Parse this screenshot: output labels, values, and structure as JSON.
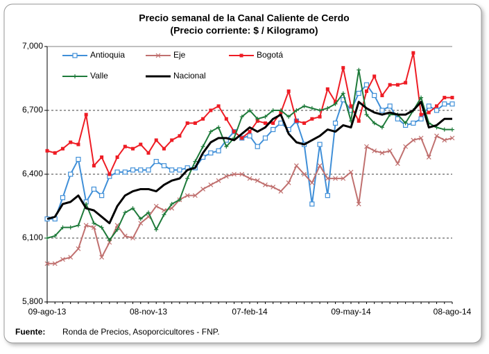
{
  "chart_data": {
    "type": "line",
    "title": "Precio semanal de la Canal Caliente de Cerdo",
    "subtitle": "(Precio corriente: $ / Kilogramo)",
    "source_label": "Fuente:",
    "source": "Ronda de Precios, Asoporcicultores - FNP.",
    "categories": [
      "09-ago-13",
      null,
      null,
      null,
      null,
      null,
      null,
      null,
      null,
      null,
      null,
      null,
      null,
      "08-nov-13",
      null,
      null,
      null,
      null,
      null,
      null,
      null,
      null,
      null,
      null,
      null,
      null,
      "07-feb-14",
      null,
      null,
      null,
      null,
      null,
      null,
      null,
      null,
      null,
      null,
      null,
      null,
      "09-may-14",
      null,
      null,
      null,
      null,
      null,
      null,
      null,
      null,
      null,
      null,
      null,
      null,
      "08-ago-14"
    ],
    "ylim": [
      5800,
      7000
    ],
    "yticks": [
      {
        "value": 5800,
        "label": "5,800"
      },
      {
        "value": 6100,
        "label": "6,100"
      },
      {
        "value": 6400,
        "label": "6,400"
      },
      {
        "value": 6700,
        "label": "6,700"
      },
      {
        "value": 7000,
        "label": "7,000"
      }
    ],
    "grid": true,
    "series": [
      {
        "name": "Antioquia",
        "color": "#3f8fd8",
        "marker": "hollow-square",
        "values": [
          6190,
          6190,
          6290,
          6400,
          6470,
          6270,
          6330,
          6300,
          6390,
          6410,
          6410,
          6420,
          6420,
          6420,
          6460,
          6440,
          6420,
          6420,
          6430,
          6430,
          6480,
          6500,
          6510,
          6560,
          6600,
          6570,
          6580,
          6530,
          6570,
          6610,
          6640,
          6610,
          6650,
          6540,
          6260,
          6540,
          6300,
          6640,
          6750,
          6700,
          6780,
          6820,
          6770,
          6700,
          6720,
          6660,
          6630,
          6640,
          6660,
          6720,
          6700,
          6730,
          6730
        ]
      },
      {
        "name": "Eje",
        "color": "#c0706f",
        "marker": "x",
        "values": [
          5980,
          5980,
          6000,
          6010,
          6050,
          6160,
          6150,
          6010,
          6080,
          6160,
          6110,
          6100,
          6170,
          6200,
          6250,
          6230,
          6240,
          6280,
          6300,
          6300,
          6330,
          6350,
          6370,
          6390,
          6400,
          6400,
          6380,
          6370,
          6350,
          6340,
          6320,
          6360,
          6440,
          6400,
          6360,
          6440,
          6380,
          6380,
          6380,
          6410,
          6260,
          6530,
          6510,
          6500,
          6510,
          6450,
          6530,
          6560,
          6570,
          6480,
          6580,
          6560,
          6570
        ]
      },
      {
        "name": "Bogotá",
        "color": "#ee1c24",
        "marker": "filled-square",
        "values": [
          6510,
          6500,
          6520,
          6550,
          6540,
          6680,
          6440,
          6480,
          6400,
          6480,
          6530,
          6520,
          6540,
          6500,
          6560,
          6520,
          6560,
          6580,
          6640,
          6640,
          6660,
          6700,
          6720,
          6660,
          6600,
          6570,
          6600,
          6650,
          6640,
          6640,
          6690,
          6790,
          6650,
          6640,
          6660,
          6670,
          6800,
          6740,
          6900,
          6720,
          6650,
          6790,
          6860,
          6770,
          6820,
          6820,
          6830,
          6970,
          6680,
          6690,
          6720,
          6760,
          6760
        ]
      },
      {
        "name": "Valle",
        "color": "#1e7a3a",
        "marker": "plus",
        "values": [
          6100,
          6110,
          6150,
          6150,
          6160,
          6260,
          6170,
          6150,
          6090,
          6140,
          6220,
          6240,
          6190,
          6220,
          6140,
          6210,
          6260,
          6280,
          6380,
          6460,
          6530,
          6600,
          6620,
          6530,
          6570,
          6670,
          6700,
          6660,
          6670,
          6700,
          6700,
          6670,
          6700,
          6720,
          6710,
          6700,
          6710,
          6730,
          6780,
          6650,
          6890,
          6680,
          6640,
          6620,
          6680,
          6680,
          6640,
          6700,
          6760,
          6640,
          6620,
          6610,
          6610
        ]
      },
      {
        "name": "Nacional",
        "color": "#000000",
        "marker": "none",
        "values": [
          6190,
          6200,
          6260,
          6270,
          6300,
          6240,
          6230,
          6200,
          6170,
          6250,
          6300,
          6320,
          6330,
          6330,
          6320,
          6350,
          6370,
          6380,
          6420,
          6430,
          6500,
          6550,
          6570,
          6570,
          6560,
          6590,
          6620,
          6600,
          6620,
          6660,
          6680,
          6590,
          6550,
          6540,
          6560,
          6580,
          6610,
          6600,
          6630,
          6620,
          6740,
          6710,
          6690,
          6680,
          6690,
          6680,
          6680,
          6700,
          6740,
          6620,
          6630,
          6660,
          6660
        ]
      }
    ]
  }
}
